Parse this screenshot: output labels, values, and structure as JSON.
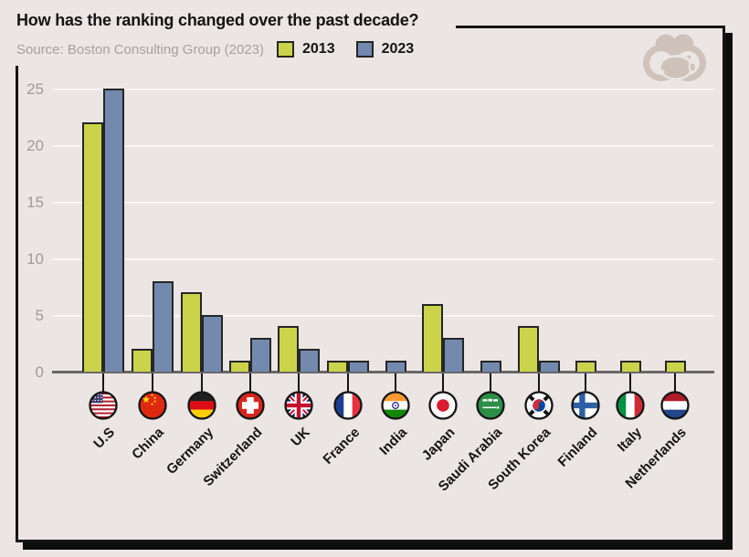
{
  "chart_data": {
    "type": "bar",
    "title": "How has the ranking changed over the past decade?",
    "source": "Source: Boston Consulting Group (2023)",
    "categories": [
      "U.S",
      "China",
      "Germany",
      "Switzerland",
      "UK",
      "France",
      "India",
      "Japan",
      "Saudi Arabia",
      "South Korea",
      "Finland",
      "Italy",
      "Netherlands"
    ],
    "series": [
      {
        "name": "2013",
        "color": "#cbd34b",
        "values": [
          22,
          2,
          7,
          1,
          4,
          1,
          0,
          6,
          0,
          4,
          1,
          1,
          1
        ]
      },
      {
        "name": "2023",
        "color": "#7389ae",
        "values": [
          25,
          8,
          5,
          3,
          2,
          1,
          1,
          3,
          1,
          1,
          0,
          0,
          0
        ]
      }
    ],
    "xlabel": "",
    "ylabel": "",
    "ylim": [
      0,
      25
    ],
    "yticks": [
      0,
      5,
      10,
      15,
      20,
      25
    ],
    "grid": true,
    "legend_position": "top"
  },
  "flags": [
    {
      "icon": "flag-us-icon",
      "kind": "us"
    },
    {
      "icon": "flag-china-icon",
      "kind": "china"
    },
    {
      "icon": "flag-germany-icon",
      "kind": "hstripes",
      "colors": [
        "#1f1f1f",
        "#dd0b15",
        "#ffcf00"
      ]
    },
    {
      "icon": "flag-switzerland-icon",
      "kind": "plus",
      "colors": [
        "#d8251d",
        "#ffffff"
      ]
    },
    {
      "icon": "flag-uk-icon",
      "kind": "uk"
    },
    {
      "icon": "flag-france-icon",
      "kind": "vstripes",
      "colors": [
        "#1c3f94",
        "#ffffff",
        "#e8323c"
      ]
    },
    {
      "icon": "flag-india-icon",
      "kind": "india"
    },
    {
      "icon": "flag-japan-icon",
      "kind": "disc",
      "colors": [
        "#ffffff",
        "#dc1b2e"
      ]
    },
    {
      "icon": "flag-saudi-arabia-icon",
      "kind": "saudi"
    },
    {
      "icon": "flag-south-korea-icon",
      "kind": "korea"
    },
    {
      "icon": "flag-finland-icon",
      "kind": "nordic",
      "colors": [
        "#ffffff",
        "#2e5fa4"
      ]
    },
    {
      "icon": "flag-italy-icon",
      "kind": "vstripes",
      "colors": [
        "#009246",
        "#ffffff",
        "#ce2b37"
      ]
    },
    {
      "icon": "flag-netherlands-icon",
      "kind": "hstripes",
      "colors": [
        "#ae1c28",
        "#ffffff",
        "#21468b"
      ]
    }
  ],
  "logo": {
    "name": "binoculars-piggy-bank-logo"
  },
  "colors": {
    "background": "#ebe5e3",
    "card_border": "#141414",
    "card_shadow": "#0d0d0d",
    "gridline": "#f8f4f2",
    "baseline": "#686868",
    "tick_text": "#a19c9a",
    "bar_border": "#262626",
    "title_text": "#141414",
    "source_text": "#a5a1a0",
    "logo": "#cfc2ba"
  }
}
